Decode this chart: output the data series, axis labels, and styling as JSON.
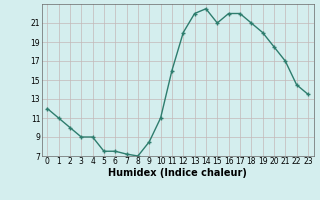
{
  "x": [
    0,
    1,
    2,
    3,
    4,
    5,
    6,
    7,
    8,
    9,
    10,
    11,
    12,
    13,
    14,
    15,
    16,
    17,
    18,
    19,
    20,
    21,
    22,
    23
  ],
  "y": [
    12.0,
    11.0,
    10.0,
    9.0,
    9.0,
    7.5,
    7.5,
    7.2,
    7.0,
    8.5,
    11.0,
    16.0,
    20.0,
    22.0,
    22.5,
    21.0,
    22.0,
    22.0,
    21.0,
    20.0,
    18.5,
    17.0,
    14.5,
    13.5
  ],
  "line_color": "#2e7d6e",
  "marker": "+",
  "marker_size": 3,
  "bg_color": "#d4eeee",
  "grid_color": "#c4b8b8",
  "xlabel": "Humidex (Indice chaleur)",
  "xlim": [
    -0.5,
    23.5
  ],
  "ylim": [
    7,
    23
  ],
  "yticks": [
    7,
    9,
    11,
    13,
    15,
    17,
    19,
    21
  ],
  "xticks": [
    0,
    1,
    2,
    3,
    4,
    5,
    6,
    7,
    8,
    9,
    10,
    11,
    12,
    13,
    14,
    15,
    16,
    17,
    18,
    19,
    20,
    21,
    22,
    23
  ],
  "tick_label_fontsize": 5.5,
  "xlabel_fontsize": 7,
  "line_width": 1.0,
  "marker_edge_width": 1.0
}
